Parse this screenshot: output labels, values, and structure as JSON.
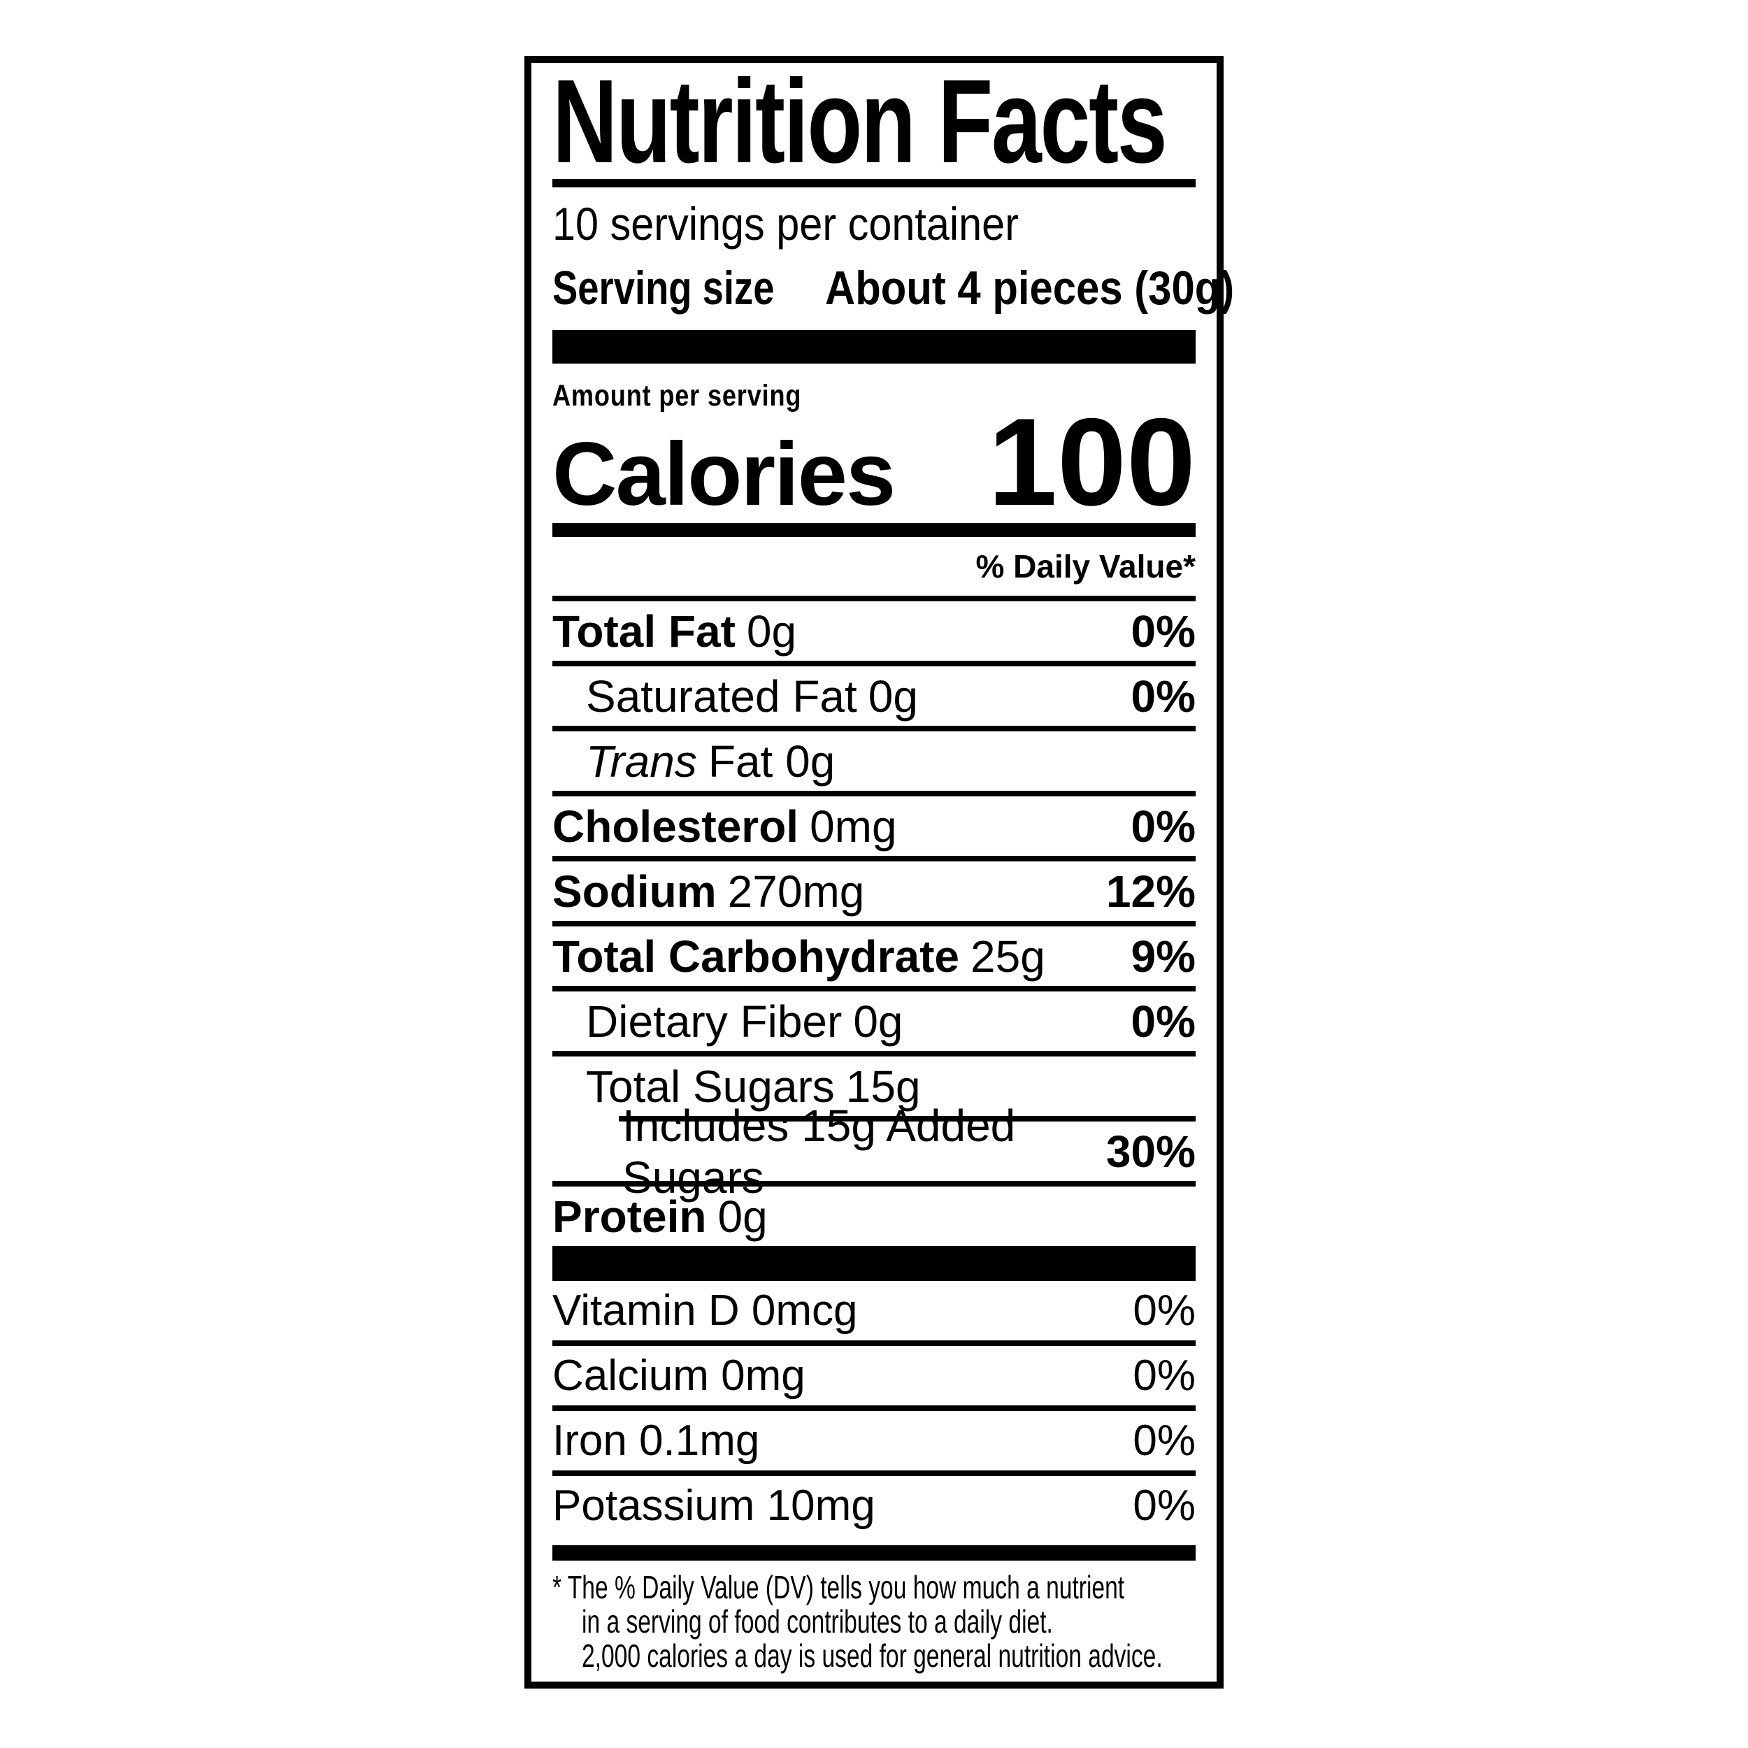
{
  "label": {
    "title": "Nutrition Facts",
    "servings_per_container": "10 servings per container",
    "serving_size_label": "Serving size",
    "serving_size_value": "About 4 pieces (30g)",
    "amount_per_serving": "Amount per serving",
    "calories_label": "Calories",
    "calories_value": "100",
    "daily_value_header": "% Daily Value*",
    "rows": [
      {
        "name": "Total Fat",
        "amount": "0g",
        "dv": "0%"
      },
      {
        "name": "Saturated Fat",
        "amount": "0g",
        "dv": "0%"
      },
      {
        "name": "Trans",
        "amount": "Fat 0g",
        "dv": ""
      },
      {
        "name": "Cholesterol",
        "amount": "0mg",
        "dv": "0%"
      },
      {
        "name": "Sodium",
        "amount": "270mg",
        "dv": "12%"
      },
      {
        "name": "Total Carbohydrate",
        "amount": "25g",
        "dv": "9%"
      },
      {
        "name": "Dietary Fiber",
        "amount": "0g",
        "dv": "0%"
      },
      {
        "name": "Total Sugars",
        "amount": "15g",
        "dv": ""
      },
      {
        "name": "Includes 15g Added Sugars",
        "amount": "",
        "dv": "30%"
      },
      {
        "name": "Protein",
        "amount": "0g",
        "dv": ""
      }
    ],
    "vitamins": [
      {
        "name": "Vitamin D 0mcg",
        "dv": "0%"
      },
      {
        "name": "Calcium 0mg",
        "dv": "0%"
      },
      {
        "name": "Iron 0.1mg",
        "dv": "0%"
      },
      {
        "name": "Potassium 10mg",
        "dv": "0%"
      }
    ],
    "footnote": {
      "line1": "* The % Daily Value (DV) tells you how much a nutrient",
      "line2": "in a serving of food contributes to a daily diet.",
      "line3": "2,000 calories a day is used for general nutrition advice."
    },
    "colors": {
      "ink": "#000000",
      "paper": "#ffffff"
    }
  }
}
